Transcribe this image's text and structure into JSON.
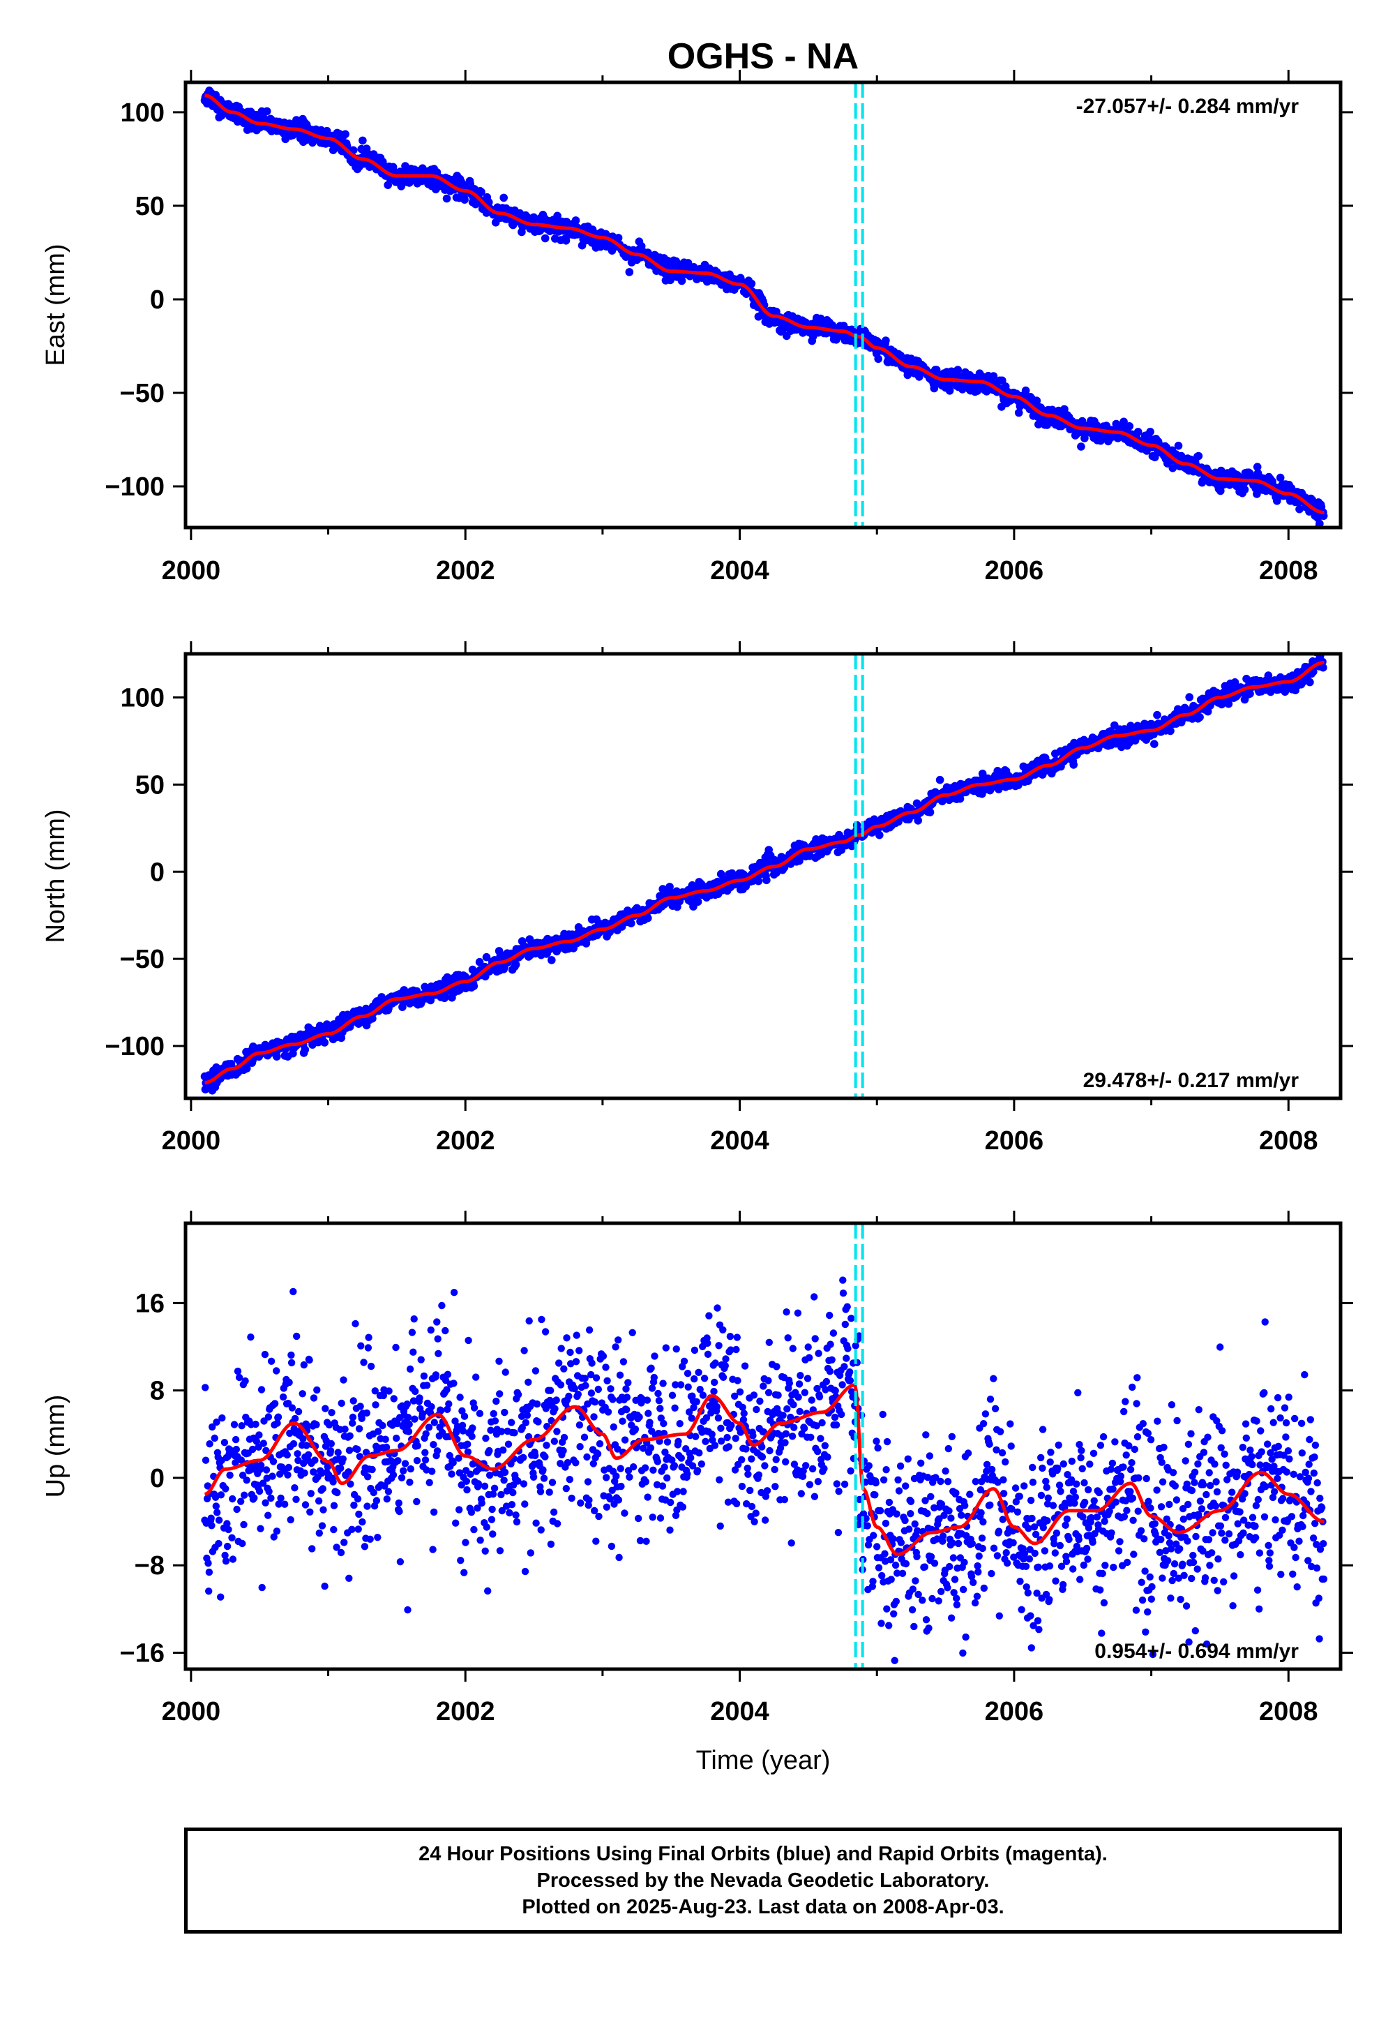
{
  "title": "OGHS - NA",
  "footer": {
    "line1": "24 Hour Positions Using Final Orbits (blue) and Rapid Orbits (magenta).",
    "line2": "Processed by the Nevada Geodetic Laboratory.",
    "line3": "Plotted on 2025-Aug-23. Last data on 2008-Apr-03."
  },
  "colors": {
    "final_orbits": "#0000ff",
    "fit_curve": "#ff0000",
    "equipment_change": "#00e5ee"
  },
  "chart_data": [
    {
      "type": "scatter",
      "component": "east",
      "ylabel": "East (mm)",
      "xlabel": "",
      "xlim": [
        1999.96,
        2008.38
      ],
      "ylim": [
        -122,
        116
      ],
      "xticks": [
        2000,
        2002,
        2004,
        2006,
        2008
      ],
      "xtick_labels": [
        "2000",
        "2002",
        "2004",
        "2006",
        "2008"
      ],
      "yticks": [
        100,
        50,
        0,
        -50,
        -100
      ],
      "ytick_labels": [
        "100",
        "50",
        "0",
        "−50",
        "−100"
      ],
      "rate_label": "-27.057+/- 0.284 mm/yr",
      "rate_position": "top-right",
      "equipment_change_x": 2004.87,
      "series": [
        {
          "name": "Final Orbits",
          "style": "points",
          "x": [
            2000.1,
            2000.3,
            2000.5,
            2000.75,
            2001.0,
            2001.25,
            2001.5,
            2001.75,
            2002.0,
            2002.25,
            2002.5,
            2002.75,
            2003.0,
            2003.25,
            2003.5,
            2003.75,
            2004.0,
            2004.25,
            2004.5,
            2004.75,
            2004.87,
            2005.0,
            2005.25,
            2005.5,
            2005.75,
            2006.0,
            2006.25,
            2006.5,
            2006.75,
            2007.0,
            2007.25,
            2007.5,
            2007.75,
            2008.0,
            2008.26
          ],
          "y": [
            109,
            100,
            94,
            91,
            86,
            75,
            66,
            66,
            58,
            46,
            40,
            38,
            33,
            24,
            15,
            14,
            8,
            -9,
            -15,
            -17,
            -20,
            -26,
            -36,
            -43,
            -44,
            -52,
            -62,
            -69,
            -71,
            -78,
            -88,
            -96,
            -97,
            -104,
            -114
          ],
          "scatter": 2.6
        },
        {
          "name": "fit",
          "style": "line",
          "x": [
            2000.1,
            2000.3,
            2000.5,
            2000.75,
            2001.0,
            2001.25,
            2001.5,
            2001.75,
            2002.0,
            2002.25,
            2002.5,
            2002.75,
            2003.0,
            2003.25,
            2003.5,
            2003.75,
            2004.0,
            2004.25,
            2004.5,
            2004.75,
            2004.87,
            2005.0,
            2005.25,
            2005.5,
            2005.75,
            2006.0,
            2006.25,
            2006.5,
            2006.75,
            2007.0,
            2007.25,
            2007.5,
            2007.75,
            2008.0,
            2008.26
          ],
          "y": [
            109,
            100,
            94,
            91,
            86,
            75,
            66,
            66,
            58,
            46,
            40,
            38,
            33,
            24,
            15,
            14,
            8,
            -9,
            -15,
            -17,
            -20,
            -26,
            -36,
            -43,
            -44,
            -52,
            -62,
            -69,
            -71,
            -78,
            -88,
            -96,
            -97,
            -104,
            -114
          ]
        }
      ]
    },
    {
      "type": "scatter",
      "component": "north",
      "ylabel": "North (mm)",
      "xlabel": "",
      "xlim": [
        1999.96,
        2008.38
      ],
      "ylim": [
        -130,
        125
      ],
      "xticks": [
        2000,
        2002,
        2004,
        2006,
        2008
      ],
      "xtick_labels": [
        "2000",
        "2002",
        "2004",
        "2006",
        "2008"
      ],
      "yticks": [
        100,
        50,
        0,
        -50,
        -100
      ],
      "ytick_labels": [
        "100",
        "50",
        "0",
        "−50",
        "−100"
      ],
      "rate_label": "29.478+/- 0.217 mm/yr",
      "rate_position": "bottom-right",
      "equipment_change_x": 2004.87,
      "series": [
        {
          "name": "Final Orbits",
          "style": "points",
          "x": [
            2000.1,
            2000.3,
            2000.5,
            2000.75,
            2001.0,
            2001.25,
            2001.5,
            2001.75,
            2002.0,
            2002.25,
            2002.5,
            2002.75,
            2003.0,
            2003.25,
            2003.5,
            2003.75,
            2004.0,
            2004.25,
            2004.5,
            2004.75,
            2004.87,
            2005.0,
            2005.25,
            2005.5,
            2005.75,
            2006.0,
            2006.25,
            2006.5,
            2006.75,
            2007.0,
            2007.25,
            2007.5,
            2007.75,
            2008.0,
            2008.26
          ],
          "y": [
            -121,
            -113,
            -104,
            -99,
            -93,
            -83,
            -73,
            -70,
            -63,
            -52,
            -44,
            -40,
            -33,
            -25,
            -15,
            -11,
            -5,
            3,
            13,
            17,
            21,
            26,
            34,
            44,
            50,
            53,
            61,
            71,
            78,
            81,
            90,
            100,
            106,
            109,
            120
          ],
          "scatter": 2.6
        },
        {
          "name": "fit",
          "style": "line",
          "x": [
            2000.1,
            2000.3,
            2000.5,
            2000.75,
            2001.0,
            2001.25,
            2001.5,
            2001.75,
            2002.0,
            2002.25,
            2002.5,
            2002.75,
            2003.0,
            2003.25,
            2003.5,
            2003.75,
            2004.0,
            2004.25,
            2004.5,
            2004.75,
            2004.87,
            2005.0,
            2005.25,
            2005.5,
            2005.75,
            2006.0,
            2006.25,
            2006.5,
            2006.75,
            2007.0,
            2007.25,
            2007.5,
            2007.75,
            2008.0,
            2008.26
          ],
          "y": [
            -121,
            -113,
            -104,
            -99,
            -93,
            -83,
            -73,
            -70,
            -63,
            -52,
            -44,
            -40,
            -33,
            -25,
            -15,
            -11,
            -5,
            3,
            13,
            17,
            21,
            26,
            34,
            44,
            50,
            53,
            61,
            71,
            78,
            81,
            90,
            100,
            106,
            109,
            120
          ]
        }
      ]
    },
    {
      "type": "scatter",
      "component": "up",
      "ylabel": "Up (mm)",
      "xlabel": "Time (year)",
      "xlim": [
        1999.96,
        2008.38
      ],
      "ylim": [
        -17.5,
        23.3
      ],
      "xticks": [
        2000,
        2002,
        2004,
        2006,
        2008
      ],
      "xtick_labels": [
        "2000",
        "2002",
        "2004",
        "2006",
        "2008"
      ],
      "yticks": [
        16,
        8,
        0,
        -8,
        -16
      ],
      "ytick_labels": [
        "16",
        "8",
        "0",
        "−8",
        "−16"
      ],
      "rate_label": "0.954+/- 0.694 mm/yr",
      "rate_position": "bottom-right",
      "equipment_change_x": 2004.87,
      "series": [
        {
          "name": "Final Orbits",
          "style": "points",
          "x": [
            2000.1,
            2000.25,
            2000.5,
            2000.75,
            2001.0,
            2001.1,
            2001.3,
            2001.5,
            2001.8,
            2002.0,
            2002.2,
            2002.5,
            2002.8,
            2003.0,
            2003.1,
            2003.3,
            2003.6,
            2003.8,
            2004.0,
            2004.1,
            2004.3,
            2004.6,
            2004.84,
            2004.9,
            2005.0,
            2005.15,
            2005.4,
            2005.6,
            2005.85,
            2006.0,
            2006.15,
            2006.4,
            2006.6,
            2006.85,
            2007.0,
            2007.2,
            2007.5,
            2007.8,
            2008.0,
            2008.26
          ],
          "y": [
            -1.5,
            0.8,
            1.6,
            5.0,
            1.5,
            -0.5,
            2.0,
            2.5,
            5.8,
            2.0,
            0.8,
            3.5,
            6.5,
            4.0,
            1.8,
            3.5,
            4.0,
            7.5,
            5.0,
            3.0,
            5.0,
            6.0,
            8.5,
            -1.0,
            -4.5,
            -7.0,
            -5.0,
            -4.5,
            -1.0,
            -4.5,
            -6.0,
            -3.0,
            -3.0,
            -0.5,
            -3.5,
            -5.0,
            -3.0,
            0.5,
            -1.5,
            -4.0
          ],
          "scatter": 4.2
        },
        {
          "name": "fit",
          "style": "line",
          "x": [
            2000.1,
            2000.25,
            2000.5,
            2000.75,
            2001.0,
            2001.1,
            2001.3,
            2001.5,
            2001.8,
            2002.0,
            2002.2,
            2002.5,
            2002.8,
            2003.0,
            2003.1,
            2003.3,
            2003.6,
            2003.8,
            2004.0,
            2004.1,
            2004.3,
            2004.6,
            2004.84,
            2004.9,
            2005.0,
            2005.15,
            2005.4,
            2005.6,
            2005.85,
            2006.0,
            2006.15,
            2006.4,
            2006.6,
            2006.85,
            2007.0,
            2007.2,
            2007.5,
            2007.8,
            2008.0,
            2008.26
          ],
          "y": [
            -1.5,
            0.8,
            1.6,
            5.0,
            1.5,
            -0.5,
            2.0,
            2.5,
            5.8,
            2.0,
            0.8,
            3.5,
            6.5,
            4.0,
            1.8,
            3.5,
            4.0,
            7.5,
            5.0,
            3.0,
            5.0,
            6.0,
            8.5,
            -1.0,
            -4.5,
            -7.0,
            -5.0,
            -4.5,
            -1.0,
            -4.5,
            -6.0,
            -3.0,
            -3.0,
            -0.5,
            -3.5,
            -5.0,
            -3.0,
            0.5,
            -1.5,
            -4.0
          ]
        }
      ]
    }
  ]
}
